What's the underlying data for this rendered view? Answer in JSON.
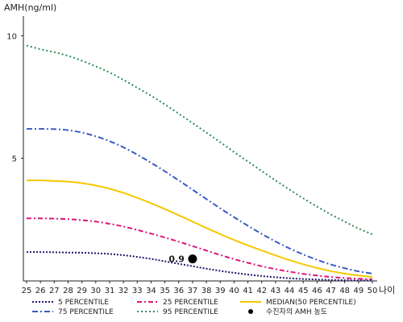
{
  "chart_data": {
    "type": "line",
    "ylabel": "AMH(ng/ml)",
    "xlabel": "나이",
    "x": [
      25,
      26,
      27,
      28,
      29,
      30,
      31,
      32,
      33,
      34,
      35,
      36,
      37,
      38,
      39,
      40,
      41,
      42,
      43,
      44,
      45,
      46,
      47,
      48,
      49,
      50
    ],
    "x_ticks": [
      "25",
      "26",
      "27",
      "28",
      "29",
      "30",
      "31",
      "32",
      "33",
      "34",
      "35",
      "36",
      "37",
      "38",
      "39",
      "40",
      "41",
      "42",
      "43",
      "44",
      "45",
      "46",
      "47",
      "48",
      "49",
      "50"
    ],
    "y_ticks": [
      "10",
      "5"
    ],
    "ylim": [
      0,
      10.8
    ],
    "xlim": [
      25,
      50
    ],
    "series": [
      {
        "name": "5 PERCENTILE",
        "color": "#1a1a6e",
        "dash": "2,2",
        "width": 2,
        "values": [
          1.18,
          1.18,
          1.17,
          1.16,
          1.15,
          1.13,
          1.1,
          1.05,
          0.98,
          0.9,
          0.8,
          0.7,
          0.6,
          0.5,
          0.41,
          0.33,
          0.26,
          0.2,
          0.15,
          0.11,
          0.08,
          0.06,
          0.04,
          0.03,
          0.02,
          0.02
        ]
      },
      {
        "name": "25 PERCENTILE",
        "color": "#e0137a",
        "dash": "6,3,2,3",
        "width": 2,
        "values": [
          2.55,
          2.55,
          2.54,
          2.52,
          2.48,
          2.42,
          2.33,
          2.22,
          2.08,
          1.93,
          1.77,
          1.6,
          1.42,
          1.24,
          1.06,
          0.89,
          0.74,
          0.6,
          0.48,
          0.38,
          0.29,
          0.22,
          0.16,
          0.12,
          0.09,
          0.07
        ]
      },
      {
        "name": "MEDIAN(50 PERCENTILE)",
        "color": "#f5c800",
        "dash": "",
        "width": 2,
        "values": [
          4.1,
          4.1,
          4.08,
          4.05,
          3.99,
          3.89,
          3.76,
          3.59,
          3.39,
          3.17,
          2.93,
          2.68,
          2.42,
          2.16,
          1.91,
          1.67,
          1.45,
          1.24,
          1.04,
          0.85,
          0.68,
          0.53,
          0.4,
          0.3,
          0.22,
          0.16
        ]
      },
      {
        "name": "75 PERCENTILE",
        "color": "#3b5bc4",
        "dash": "7,3,2,3",
        "width": 2,
        "values": [
          6.2,
          6.2,
          6.19,
          6.15,
          6.05,
          5.9,
          5.7,
          5.45,
          5.15,
          4.82,
          4.47,
          4.1,
          3.72,
          3.34,
          2.96,
          2.6,
          2.25,
          1.92,
          1.61,
          1.33,
          1.08,
          0.86,
          0.67,
          0.52,
          0.39,
          0.3
        ]
      },
      {
        "name": "95 PERCENTILE",
        "color": "#2e8b57",
        "dash": "2,3",
        "width": 2,
        "values": [
          9.6,
          9.45,
          9.33,
          9.18,
          8.98,
          8.75,
          8.5,
          8.2,
          7.88,
          7.55,
          7.2,
          6.82,
          6.44,
          6.05,
          5.66,
          5.26,
          4.87,
          4.48,
          4.1,
          3.73,
          3.37,
          3.03,
          2.71,
          2.42,
          2.14,
          1.9
        ]
      }
    ],
    "highlight_point": {
      "label": "0.9",
      "x": 37,
      "y": 0.9,
      "legend": "수진자의 AMH 농도",
      "color": "#000000"
    },
    "legend_position": "bottom",
    "grid": false
  }
}
